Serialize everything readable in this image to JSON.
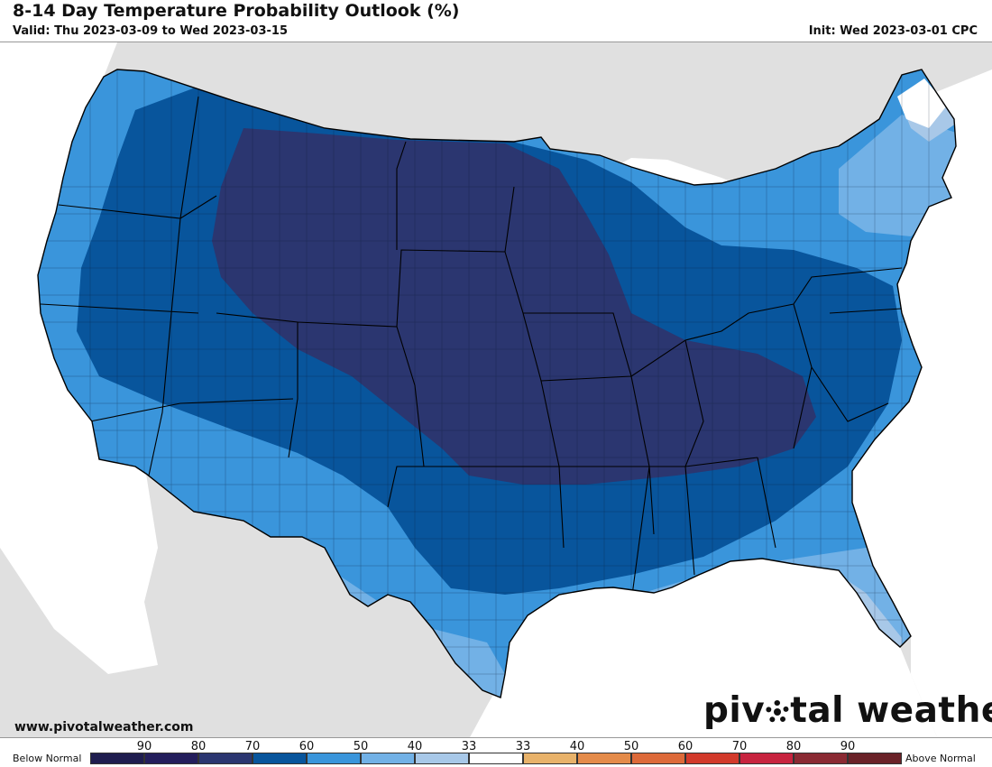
{
  "header": {
    "title": "8-14 Day Temperature Probability Outlook (%)",
    "valid": "Valid: Thu 2023-03-09 to Wed 2023-03-15",
    "init": "Init: Wed 2023-03-01 CPC"
  },
  "footer": {
    "website": "www.pivotalweather.com",
    "brand_left": "piv",
    "brand_right": "tal weather"
  },
  "legend": {
    "below_label": "Below Normal",
    "above_label": "Above Normal",
    "tick_labels": [
      "90",
      "80",
      "70",
      "60",
      "50",
      "40",
      "33",
      "33",
      "40",
      "50",
      "60",
      "70",
      "80",
      "90"
    ],
    "colors": [
      "#1f1d4f",
      "#241e5c",
      "#2b3670",
      "#08559c",
      "#3a95db",
      "#72b1e6",
      "#a8c8e8",
      "#ffffff",
      "#e8b26a",
      "#e48b4a",
      "#dd6a3a",
      "#d23a2b",
      "#c7243f",
      "#8a2a33",
      "#6a2228"
    ]
  },
  "map": {
    "colors": {
      "background": "#e0e0e0",
      "water": "#ffffff",
      "below_33": "#a8c8e8",
      "below_40": "#72b1e6",
      "below_50": "#3a95db",
      "below_60": "#08559c",
      "below_70": "#2b3670"
    }
  }
}
